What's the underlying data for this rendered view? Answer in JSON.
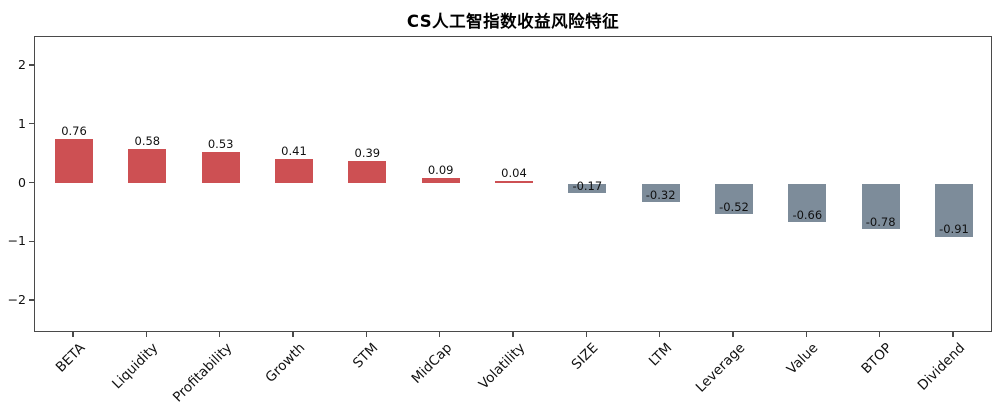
{
  "chart_data": {
    "type": "bar",
    "title": "CS人工智指数收益风险特征",
    "categories": [
      "BETA",
      "Liquidity",
      "Profitability",
      "Growth",
      "STM",
      "MidCap",
      "Volatility",
      "SIZE",
      "LTM",
      "Leverage",
      "Value",
      "BTOP",
      "Dividend"
    ],
    "values": [
      0.76,
      0.58,
      0.53,
      0.41,
      0.39,
      0.09,
      0.04,
      -0.17,
      -0.32,
      -0.52,
      -0.66,
      -0.78,
      -0.91
    ],
    "value_labels": [
      "0.76",
      "0.58",
      "0.53",
      "0.41",
      "0.39",
      "0.09",
      "0.04",
      "-0.17",
      "-0.32",
      "-0.52",
      "-0.66",
      "-0.78",
      "-0.91"
    ],
    "xlabel": "",
    "ylabel": "",
    "ylim": [
      -2.55,
      2.5
    ],
    "yticks": [
      2,
      1,
      0,
      -1,
      -2
    ],
    "ytick_labels": [
      "2",
      "1",
      "0",
      "−1",
      "−2"
    ],
    "grid": false,
    "legend": null,
    "bar_label_position": "positive above bar, negative inside bar at bottom",
    "colors": {
      "positive_bar": "#CD5053",
      "negative_bar": "#7D8C9A",
      "axis": "#4a4a4a",
      "text": "#111111",
      "background": "#ffffff"
    }
  }
}
